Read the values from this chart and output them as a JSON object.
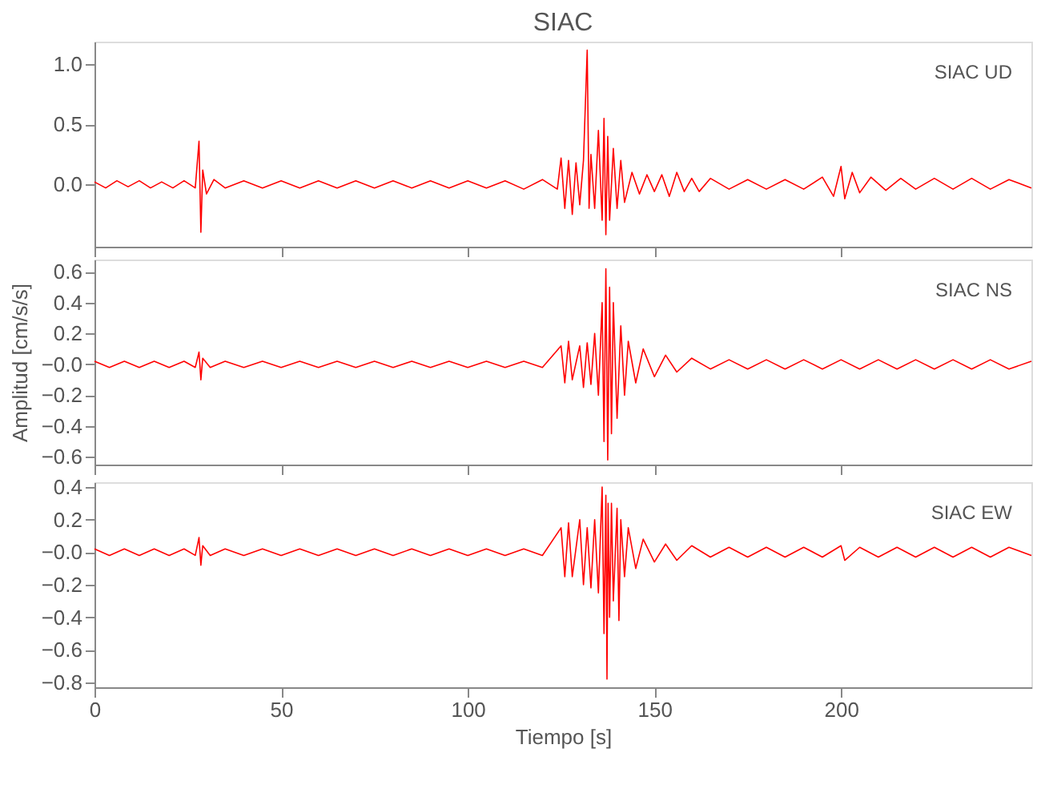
{
  "chart_data": [
    {
      "type": "line",
      "title": "SIAC",
      "annotations": [
        "SIAC   UD"
      ],
      "xlim": [
        0,
        251
      ],
      "xticks": [
        0,
        50,
        100,
        150,
        200
      ],
      "ylim": [
        -0.52,
        1.19
      ],
      "yticks": [
        {
          "value": 0.0,
          "label": "0.0"
        },
        {
          "value": 0.5,
          "label": "0.5"
        },
        {
          "value": 1.0,
          "label": "1.0"
        }
      ],
      "tick_labels": "y",
      "grid": false,
      "series": [
        {
          "color": "#ff0000",
          "x": [
            0,
            3,
            6,
            9,
            12,
            15,
            18,
            21,
            24,
            27,
            28,
            28.5,
            29,
            30,
            32,
            35,
            40,
            45,
            50,
            55,
            60,
            65,
            70,
            75,
            80,
            85,
            90,
            95,
            100,
            105,
            110,
            115,
            120,
            124,
            125,
            126,
            127,
            128,
            129,
            130,
            131,
            132,
            132.5,
            133,
            134,
            135,
            136,
            136.5,
            137,
            137.5,
            138,
            139,
            140,
            141,
            142,
            144,
            146,
            148,
            150,
            152,
            154,
            156,
            158,
            160,
            162,
            165,
            170,
            175,
            180,
            185,
            190,
            195,
            198,
            200,
            201,
            203,
            205,
            208,
            212,
            216,
            220,
            225,
            230,
            235,
            240,
            245,
            251
          ],
          "values": [
            0.02,
            -0.03,
            0.03,
            -0.02,
            0.03,
            -0.03,
            0.02,
            -0.03,
            0.03,
            -0.03,
            0.36,
            -0.4,
            0.12,
            -0.08,
            0.04,
            -0.03,
            0.03,
            -0.03,
            0.03,
            -0.03,
            0.03,
            -0.03,
            0.03,
            -0.03,
            0.03,
            -0.03,
            0.03,
            -0.03,
            0.03,
            -0.03,
            0.03,
            -0.04,
            0.04,
            -0.04,
            0.22,
            -0.2,
            0.2,
            -0.25,
            0.18,
            -0.17,
            0.2,
            1.12,
            -0.2,
            0.25,
            -0.2,
            0.45,
            -0.3,
            0.55,
            -0.42,
            0.4,
            -0.3,
            0.3,
            -0.2,
            0.2,
            -0.15,
            0.1,
            -0.08,
            0.08,
            -0.06,
            0.08,
            -0.1,
            0.1,
            -0.06,
            0.05,
            -0.06,
            0.05,
            -0.04,
            0.04,
            -0.04,
            0.04,
            -0.04,
            0.06,
            -0.1,
            0.15,
            -0.12,
            0.1,
            -0.07,
            0.06,
            -0.05,
            0.05,
            -0.04,
            0.05,
            -0.04,
            0.05,
            -0.04,
            0.04,
            -0.03
          ]
        }
      ]
    },
    {
      "type": "line",
      "annotations": [
        "SIAC   NS"
      ],
      "ylabel": "Amplitud  [cm/s/s]",
      "xlim": [
        0,
        251
      ],
      "xticks": [
        0,
        50,
        100,
        150,
        200
      ],
      "ylim": [
        -0.65,
        0.68
      ],
      "yticks": [
        {
          "value": -0.6,
          "label": "−0.6"
        },
        {
          "value": -0.4,
          "label": "−0.4"
        },
        {
          "value": -0.2,
          "label": "−0.2"
        },
        {
          "value": 0.0,
          "label": "−0.0"
        },
        0.2,
        0.4,
        0.6
      ],
      "tick_labels": "y",
      "grid": false,
      "series": [
        {
          "color": "#ff0000",
          "x": [
            0,
            4,
            8,
            12,
            16,
            20,
            24,
            27,
            28,
            28.5,
            29,
            31,
            35,
            40,
            45,
            50,
            55,
            60,
            65,
            70,
            75,
            80,
            85,
            90,
            95,
            100,
            105,
            110,
            115,
            120,
            125,
            126,
            127,
            128,
            130,
            131,
            132,
            133,
            134,
            135,
            136,
            136.5,
            137,
            137.5,
            138,
            138.5,
            139,
            140,
            141,
            142,
            143,
            145,
            147,
            150,
            153,
            156,
            160,
            165,
            170,
            175,
            180,
            185,
            190,
            195,
            200,
            205,
            210,
            215,
            220,
            225,
            230,
            235,
            240,
            245,
            251
          ],
          "values": [
            0.02,
            -0.02,
            0.02,
            -0.02,
            0.02,
            -0.02,
            0.02,
            -0.02,
            0.08,
            -0.1,
            0.04,
            -0.02,
            0.02,
            -0.02,
            0.02,
            -0.02,
            0.02,
            -0.02,
            0.02,
            -0.02,
            0.02,
            -0.02,
            0.02,
            -0.02,
            0.02,
            -0.02,
            0.02,
            -0.02,
            0.02,
            -0.02,
            0.12,
            -0.12,
            0.15,
            -0.1,
            0.12,
            -0.15,
            0.14,
            -0.13,
            0.2,
            -0.2,
            0.4,
            -0.5,
            0.62,
            -0.62,
            0.5,
            -0.45,
            0.4,
            -0.35,
            0.25,
            -0.2,
            0.15,
            -0.12,
            0.1,
            -0.08,
            0.06,
            -0.05,
            0.04,
            -0.03,
            0.03,
            -0.03,
            0.03,
            -0.03,
            0.03,
            -0.03,
            0.03,
            -0.03,
            0.03,
            -0.03,
            0.03,
            -0.03,
            0.03,
            -0.03,
            0.03,
            -0.03,
            0.02
          ]
        }
      ]
    },
    {
      "type": "line",
      "annotations": [
        "SIAC   EW"
      ],
      "xlabel": "Tiempo  [s]",
      "xlim": [
        0,
        251
      ],
      "xticks": [
        0,
        50,
        100,
        150,
        200
      ],
      "ylim": [
        -0.83,
        0.43
      ],
      "yticks": [
        {
          "value": -0.8,
          "label": "−0.8"
        },
        {
          "value": -0.6,
          "label": "−0.6"
        },
        {
          "value": -0.4,
          "label": "−0.4"
        },
        {
          "value": -0.2,
          "label": "−0.2"
        },
        {
          "value": 0.0,
          "label": "−0.0"
        },
        0.2,
        0.4
      ],
      "grid": false,
      "series": [
        {
          "color": "#ff0000",
          "x": [
            0,
            4,
            8,
            12,
            16,
            20,
            24,
            27,
            28,
            28.5,
            29,
            31,
            35,
            40,
            45,
            50,
            55,
            60,
            65,
            70,
            75,
            80,
            85,
            90,
            95,
            100,
            105,
            110,
            115,
            120,
            125,
            126,
            127,
            128,
            130,
            131,
            132,
            133,
            134,
            135,
            136,
            136.5,
            137,
            137.3,
            137.6,
            138,
            138.5,
            139,
            140,
            140.5,
            141,
            142,
            143,
            145,
            147,
            150,
            153,
            156,
            160,
            165,
            170,
            175,
            180,
            185,
            190,
            195,
            200,
            201,
            205,
            210,
            215,
            220,
            225,
            230,
            235,
            240,
            245,
            251
          ],
          "values": [
            0.02,
            -0.02,
            0.02,
            -0.02,
            0.02,
            -0.02,
            0.02,
            -0.02,
            0.09,
            -0.08,
            0.04,
            -0.02,
            0.02,
            -0.02,
            0.02,
            -0.02,
            0.02,
            -0.02,
            0.02,
            -0.02,
            0.02,
            -0.02,
            0.02,
            -0.02,
            0.02,
            -0.02,
            0.02,
            -0.02,
            0.02,
            -0.02,
            0.15,
            -0.15,
            0.18,
            -0.15,
            0.2,
            -0.2,
            0.15,
            -0.22,
            0.2,
            -0.25,
            0.4,
            -0.5,
            0.35,
            -0.78,
            0.3,
            -0.4,
            0.3,
            -0.3,
            0.27,
            -0.42,
            0.2,
            -0.15,
            0.15,
            -0.1,
            0.08,
            -0.06,
            0.05,
            -0.05,
            0.04,
            -0.03,
            0.03,
            -0.03,
            0.03,
            -0.03,
            0.03,
            -0.03,
            0.04,
            -0.05,
            0.03,
            -0.03,
            0.03,
            -0.03,
            0.03,
            -0.03,
            0.03,
            -0.03,
            0.03,
            -0.02
          ]
        }
      ]
    }
  ]
}
